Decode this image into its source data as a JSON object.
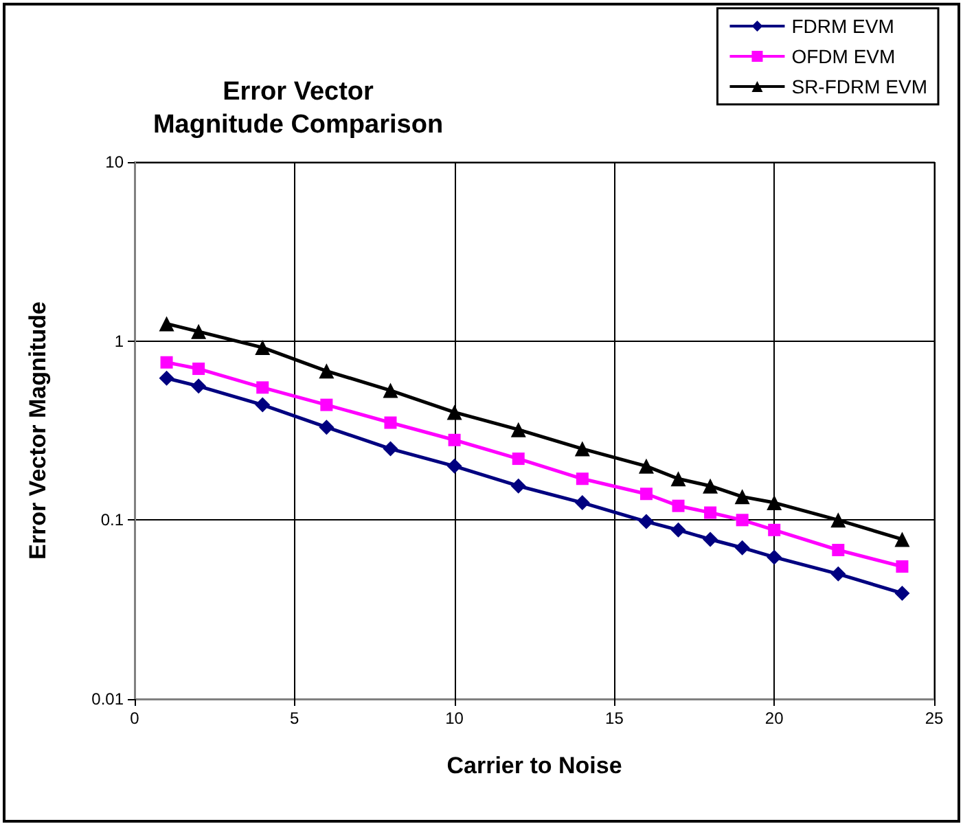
{
  "chart_data": {
    "type": "line",
    "title": "Error Vector\nMagnitude Comparison",
    "xlabel": "Carrier to Noise",
    "ylabel": "Error Vector Magnitude",
    "x": [
      1,
      2,
      4,
      6,
      8,
      10,
      12,
      14,
      16,
      17,
      18,
      19,
      20,
      22,
      24
    ],
    "series": [
      {
        "name": "FDRM EVM",
        "color": "#000080",
        "marker": "diamond",
        "values": [
          0.62,
          0.56,
          0.44,
          0.33,
          0.25,
          0.2,
          0.155,
          0.125,
          0.098,
          0.088,
          0.078,
          0.07,
          0.062,
          0.05,
          0.039
        ]
      },
      {
        "name": "OFDM EVM",
        "color": "#ff00ff",
        "marker": "square",
        "values": [
          0.76,
          0.7,
          0.55,
          0.44,
          0.35,
          0.28,
          0.22,
          0.17,
          0.14,
          0.12,
          0.11,
          0.1,
          0.088,
          0.068,
          0.055
        ]
      },
      {
        "name": "SR-FDRM EVM",
        "color": "#000000",
        "marker": "triangle",
        "values": [
          1.25,
          1.13,
          0.92,
          0.68,
          0.53,
          0.4,
          0.32,
          0.25,
          0.2,
          0.17,
          0.155,
          0.135,
          0.125,
          0.1,
          0.078
        ]
      }
    ],
    "xlim": [
      0,
      25
    ],
    "xticks": [
      0,
      5,
      10,
      15,
      20,
      25
    ],
    "ylim": [
      0.01,
      10
    ],
    "yticks": [
      0.01,
      0.1,
      1,
      10
    ],
    "log": "y",
    "grid": true,
    "legend": "top right",
    "line_style": "solid"
  }
}
